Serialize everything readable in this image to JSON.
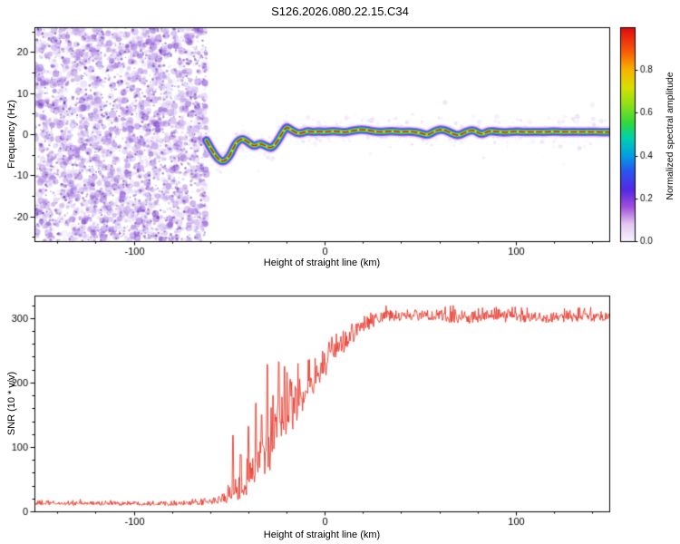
{
  "page": {
    "title": "S126.2026.080.22.15.C34"
  },
  "chart_data": [
    {
      "type": "heatmap",
      "title": "S126.2026.080.22.15.C34",
      "xlabel": "Height of straight line (km)",
      "ylabel": "Frequency (Hz)",
      "xlim": [
        -152,
        149
      ],
      "ylim": [
        -26,
        26
      ],
      "xticks": [
        -100,
        0,
        100
      ],
      "yticks": [
        -20,
        -10,
        0,
        10,
        20
      ],
      "xminor": 20,
      "yminor": 5,
      "grid": false,
      "legend": "none",
      "noise_region": {
        "x_min": -152,
        "x_max": -62,
        "density": 2200,
        "colors": [
          "#6a28c0",
          "#8a4fd8",
          "#9b6ae0",
          "#b894e8"
        ],
        "dark_dot_color": "#5c1fb0",
        "dark_dot_count": 1100
      },
      "sparse_noise": {
        "x_min": -62,
        "x_max": 149,
        "density": 300,
        "color": "#b491e2"
      },
      "trace": {
        "points": [
          [
            -62,
            -1.5
          ],
          [
            -59,
            -4
          ],
          [
            -56,
            -6
          ],
          [
            -53,
            -6.8
          ],
          [
            -50,
            -5.5
          ],
          [
            -48,
            -3.5
          ],
          [
            -46,
            -1.8
          ],
          [
            -43,
            -1
          ],
          [
            -40,
            -2
          ],
          [
            -37,
            -3
          ],
          [
            -34,
            -2.2
          ],
          [
            -31,
            -2.8
          ],
          [
            -28,
            -3.5
          ],
          [
            -25,
            -2
          ],
          [
            -22,
            0.5
          ],
          [
            -20,
            1.8
          ],
          [
            -18,
            1.2
          ],
          [
            -15,
            0.3
          ],
          [
            -12,
            0.2
          ],
          [
            -9,
            0.8
          ],
          [
            -6,
            0.5
          ],
          [
            -3,
            0.7
          ],
          [
            0,
            0.5
          ],
          [
            5,
            0.8
          ],
          [
            10,
            0.4
          ],
          [
            15,
            0.9
          ],
          [
            20,
            1.2
          ],
          [
            25,
            0.7
          ],
          [
            30,
            0.5
          ],
          [
            35,
            0.8
          ],
          [
            40,
            0.5
          ],
          [
            45,
            0.7
          ],
          [
            50,
            0.3
          ],
          [
            54,
            -0.3
          ],
          [
            58,
            0.9
          ],
          [
            62,
            1.2
          ],
          [
            66,
            0.3
          ],
          [
            70,
            -0.4
          ],
          [
            74,
            0.6
          ],
          [
            78,
            1.1
          ],
          [
            82,
            -0.2
          ],
          [
            86,
            0.8
          ],
          [
            90,
            0.6
          ],
          [
            95,
            0.4
          ],
          [
            100,
            0.7
          ],
          [
            105,
            0.5
          ],
          [
            110,
            0.6
          ],
          [
            115,
            0.5
          ],
          [
            120,
            0.7
          ],
          [
            125,
            0.5
          ],
          [
            130,
            0.6
          ],
          [
            135,
            0.5
          ],
          [
            140,
            0.6
          ],
          [
            145,
            0.5
          ],
          [
            149,
            0.5
          ]
        ],
        "rings": [
          [
            13,
            "#dcc6f2",
            0.5
          ],
          [
            9.5,
            "#9b4fe0",
            0.85
          ],
          [
            7.2,
            "#3f3ae8",
            0.92
          ],
          [
            5.4,
            "#00c2de",
            0.95
          ],
          [
            3.8,
            "#2ecc44",
            1
          ],
          [
            2.6,
            "#c6e512",
            1
          ]
        ],
        "core": {
          "width": 1.5,
          "color": "#e01414",
          "dash": [
            6,
            3.5
          ]
        }
      },
      "colorbar": {
        "label": "Normalized spectral amplitude",
        "range": [
          0,
          1
        ],
        "ticks": [
          0,
          0.2,
          0.4,
          0.6,
          0.8
        ],
        "stops": [
          [
            0,
            "#f8f3fc"
          ],
          [
            0.08,
            "#e2c8f0"
          ],
          [
            0.16,
            "#a050dc"
          ],
          [
            0.24,
            "#5428e4"
          ],
          [
            0.33,
            "#2858f0"
          ],
          [
            0.4,
            "#00a0e0"
          ],
          [
            0.48,
            "#00d0b0"
          ],
          [
            0.55,
            "#30d840"
          ],
          [
            0.64,
            "#90e018"
          ],
          [
            0.72,
            "#d8e000"
          ],
          [
            0.8,
            "#f8b400"
          ],
          [
            0.88,
            "#f86008"
          ],
          [
            1,
            "#e00810"
          ]
        ]
      }
    },
    {
      "type": "line",
      "title": "",
      "xlabel": "Height of straight line (km)",
      "ylabel": "SNR (10 * v/v)",
      "xlim": [
        -152,
        149
      ],
      "ylim": [
        0,
        335
      ],
      "xticks": [
        -100,
        0,
        100
      ],
      "yticks": [
        0,
        100,
        200,
        300
      ],
      "xminor": 20,
      "yminor": 20,
      "grid": false,
      "legend": "none",
      "color": "#e8382a",
      "envelope": [
        [
          -152,
          12,
          5
        ],
        [
          -120,
          12,
          5
        ],
        [
          -90,
          12,
          5
        ],
        [
          -72,
          12,
          5
        ],
        [
          -64,
          13,
          6
        ],
        [
          -58,
          15,
          7
        ],
        [
          -54,
          18,
          10
        ],
        [
          -50,
          24,
          18
        ],
        [
          -46,
          30,
          26
        ],
        [
          -42,
          42,
          34
        ],
        [
          -38,
          55,
          44
        ],
        [
          -34,
          70,
          55
        ],
        [
          -30,
          90,
          60
        ],
        [
          -26,
          110,
          65
        ],
        [
          -22,
          135,
          60
        ],
        [
          -18,
          155,
          55
        ],
        [
          -14,
          172,
          48
        ],
        [
          -10,
          188,
          42
        ],
        [
          -6,
          202,
          38
        ],
        [
          -2,
          218,
          34
        ],
        [
          2,
          235,
          30
        ],
        [
          6,
          248,
          26
        ],
        [
          10,
          260,
          24
        ],
        [
          14,
          272,
          22
        ],
        [
          18,
          282,
          20
        ],
        [
          22,
          290,
          18
        ],
        [
          26,
          296,
          16
        ],
        [
          30,
          300,
          15
        ],
        [
          40,
          303,
          14
        ],
        [
          55,
          302,
          14
        ],
        [
          70,
          300,
          15
        ],
        [
          85,
          302,
          14
        ],
        [
          100,
          303,
          14
        ],
        [
          115,
          300,
          14
        ],
        [
          130,
          302,
          14
        ],
        [
          149,
          301,
          14
        ]
      ],
      "spikes": [
        [
          -48,
          118
        ],
        [
          -44,
          88
        ],
        [
          -40,
          132
        ],
        [
          -36,
          168
        ],
        [
          -33,
          150
        ],
        [
          -30,
          228
        ],
        [
          -27,
          180
        ],
        [
          -24,
          232
        ],
        [
          -21,
          225
        ],
        [
          -18,
          205
        ],
        [
          -15,
          190
        ],
        [
          -12,
          175
        ]
      ]
    }
  ]
}
